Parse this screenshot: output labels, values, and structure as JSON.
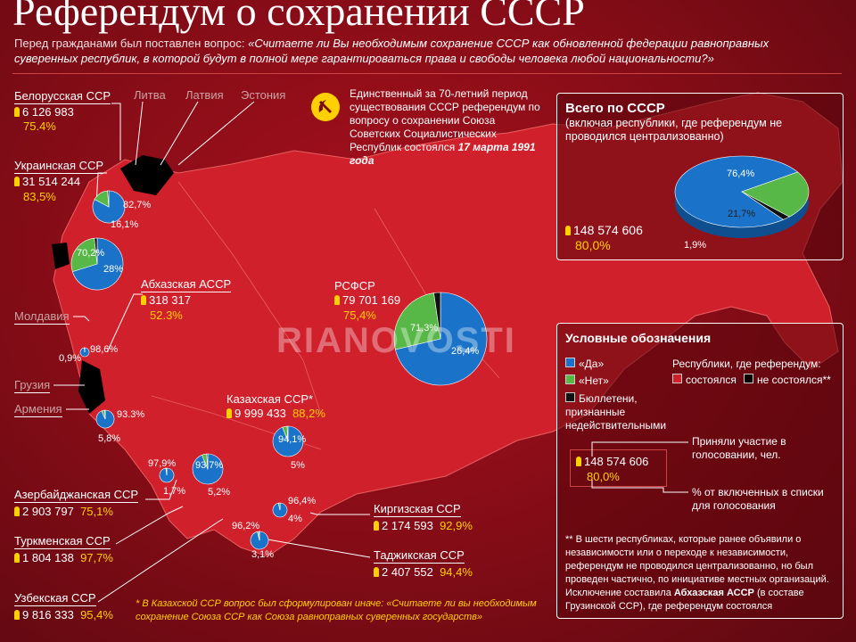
{
  "title": "Референдум о сохранении СССР",
  "question_prefix": "Перед гражданами был поставлен вопрос: ",
  "question_text": "«Считаете ли Вы необходимым сохранение СССР как обновленной федерации равноправных суверенных республик, в которой будут в полной мере гарантироваться права и свободы человека любой национальности?»",
  "intro_note": {
    "text": "Единственный за 70-летний период существования СССР референдум по вопросу о сохранении Союза Советских Социалистических Республик состоялся",
    "date": "17 марта 1991 года"
  },
  "colors": {
    "yes": "#1a73c8",
    "no": "#58b847",
    "invalid": "#111111",
    "held": "#d0202c",
    "not_held": "#000000",
    "highlight": "#ffd000"
  },
  "not_held_republics": [
    "Литва",
    "Латвия",
    "Эстония",
    "Молдавия",
    "Грузия",
    "Армения"
  ],
  "republics": [
    {
      "name": "Белорусская ССР",
      "voters": "6 126 983",
      "turnout": "75.4%",
      "yes": "82,7%",
      "no": "16,1%"
    },
    {
      "name": "Украинская ССР",
      "voters": "31 514 244",
      "turnout": "83,5%",
      "yes": "70,2%",
      "no": "28%"
    },
    {
      "name": "Абхазская АССР",
      "voters": "318 317",
      "turnout": "52.3%",
      "yes": "98,6%",
      "no": "0,9%"
    },
    {
      "name": "РСФСР",
      "voters": "79 701 169",
      "turnout": "75,4%",
      "yes": "71,3%",
      "no": "26,4%"
    },
    {
      "name": "Казахская ССР*",
      "voters": "9 999 433",
      "turnout": "88,2%",
      "yes": "94,1%",
      "no": "5%"
    },
    {
      "name": "Азербайджанская ССР",
      "voters": "2 903 797",
      "turnout": "75,1%",
      "yes": "93.3%",
      "no": "5,8%"
    },
    {
      "name": "Туркменская ССР",
      "voters": "1 804 138",
      "turnout": "97,7%",
      "yes": "97,9%",
      "no": "1,7%"
    },
    {
      "name": "Узбекская ССР",
      "voters": "9 816 333",
      "turnout": "95,4%",
      "yes": "93,7%",
      "no": "5,2%"
    },
    {
      "name": "Киргизская ССР",
      "voters": "2 174 593",
      "turnout": "92,9%",
      "yes": "96,4%",
      "no": "4%"
    },
    {
      "name": "Таджикская ССР",
      "voters": "2 407 552",
      "turnout": "94,4%",
      "yes": "96,2%",
      "no": "3,1%"
    }
  ],
  "total": {
    "title": "Всего по СССР",
    "subtitle": "(включая республики, где референдум не проводился централизованно)",
    "voters": "148 574 606",
    "turnout": "80,0%",
    "yes": "76,4%",
    "no": "21,7%",
    "invalid": "1,9%",
    "yes_value": 76.4,
    "no_value": 21.7,
    "invalid_value": 1.9
  },
  "legend": {
    "title": "Условные обозначения",
    "yes": "«Да»",
    "no": "«Нет»",
    "invalid": "Бюллетени, признанные недействительными",
    "republics_label": "Республики, где референдум:",
    "held": "состоялся",
    "not_held": "не состоялся**",
    "example_voters": "148 574 606",
    "example_turnout": "80,0%",
    "voters_caption": "Приняли участие в голосовании, чел.",
    "turnout_caption": "% от включенных в списки для голосования"
  },
  "footnote_stars": "** В шести республиках, которые ранее объявили о независимости или о переходе к независимости, референдум не проводился централизованно, но был проведен частично, по инициативе местных организаций. Исключение составила",
  "footnote_exception": "Абхазская АССР",
  "footnote_tail": "(в составе Грузинской ССР), где референдум состоялся",
  "footnote_kz": "* В Казахской ССР вопрос был сформулирован иначе: «Считаете ли вы необходимым сохранение Союза ССР как Союза равноправных суверенных государств»",
  "watermark": "RIANOVOSTI"
}
